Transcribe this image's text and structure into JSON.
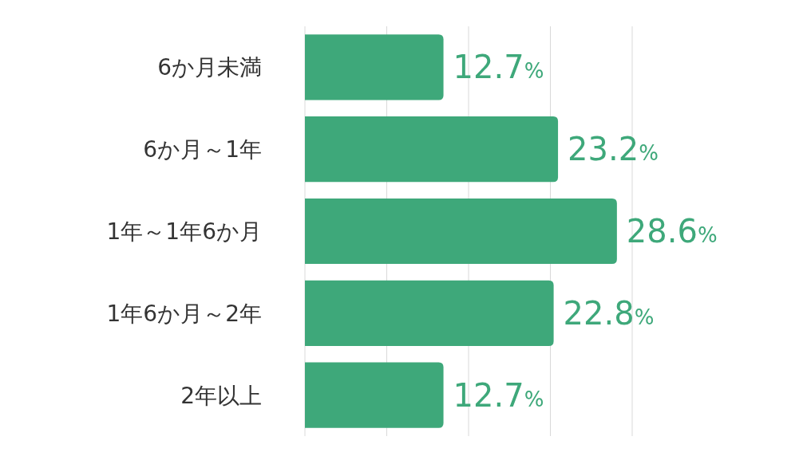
{
  "chart_data": {
    "type": "bar",
    "orientation": "horizontal",
    "categories": [
      "6か月未満",
      "6か月～1年",
      "1年～1年6か月",
      "1年6か月～2年",
      "2年以上"
    ],
    "values": [
      12.7,
      23.2,
      28.6,
      22.8,
      12.7
    ],
    "value_labels": [
      "12.7%",
      "23.2%",
      "28.6%",
      "22.8%",
      "12.7%"
    ],
    "color": "#3ea87a",
    "xlim": [
      0,
      30
    ],
    "xticks": [
      {
        "value": 0,
        "label": null
      },
      {
        "value": 7.5,
        "label": null
      },
      {
        "value": 15,
        "label": null
      },
      {
        "value": 22.5,
        "label": null
      },
      {
        "value": 30,
        "label": null
      }
    ],
    "grid": "x",
    "tick_labels": "y"
  }
}
